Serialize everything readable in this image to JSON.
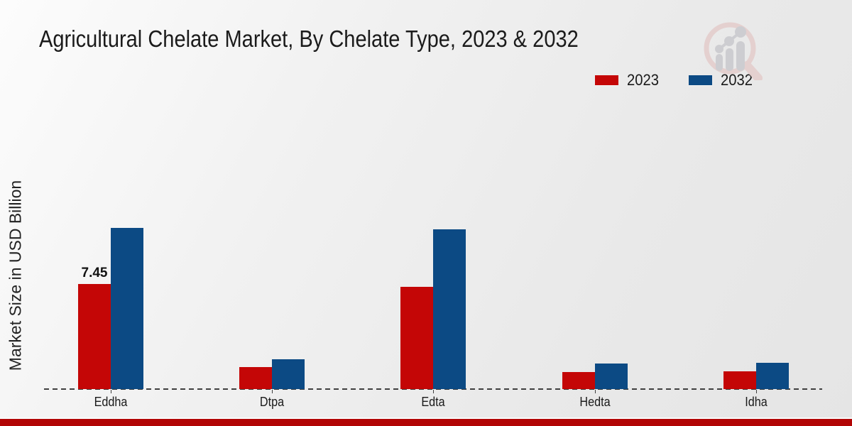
{
  "header": {
    "title": "Agricultural Chelate Market, By Chelate Type, 2023 & 2032"
  },
  "legend": [
    {
      "label": "2023",
      "color": "#c40606"
    },
    {
      "label": "2032",
      "color": "#0c4a84"
    }
  ],
  "watermark_icon": "market-research-magnifier-logo",
  "colors": {
    "bar_2023": "#c40606",
    "bar_2032": "#0c4a84",
    "bottom_strip": "#b20505",
    "axis": "#3f3f3f"
  },
  "chart_data": {
    "type": "bar",
    "title": "Agricultural Chelate Market, By Chelate Type, 2023 & 2032",
    "ylabel": "Market Size in USD Billion",
    "xlabel": "",
    "categories": [
      "Eddha",
      "Dtpa",
      "Edta",
      "Hedta",
      "Idha"
    ],
    "series": [
      {
        "name": "2023",
        "color": "#c40606",
        "values": [
          7.45,
          1.55,
          7.25,
          1.2,
          1.25
        ]
      },
      {
        "name": "2032",
        "color": "#0c4a84",
        "values": [
          11.4,
          2.1,
          11.3,
          1.8,
          1.85
        ]
      }
    ],
    "annotations": [
      {
        "series": "2023",
        "category": "Eddha",
        "text": "7.45"
      }
    ],
    "ylim": [
      0,
      13
    ],
    "grid": false,
    "y_axis_ticks_visible": false,
    "baseline_style": "dashed",
    "legend_position": "top-right"
  }
}
